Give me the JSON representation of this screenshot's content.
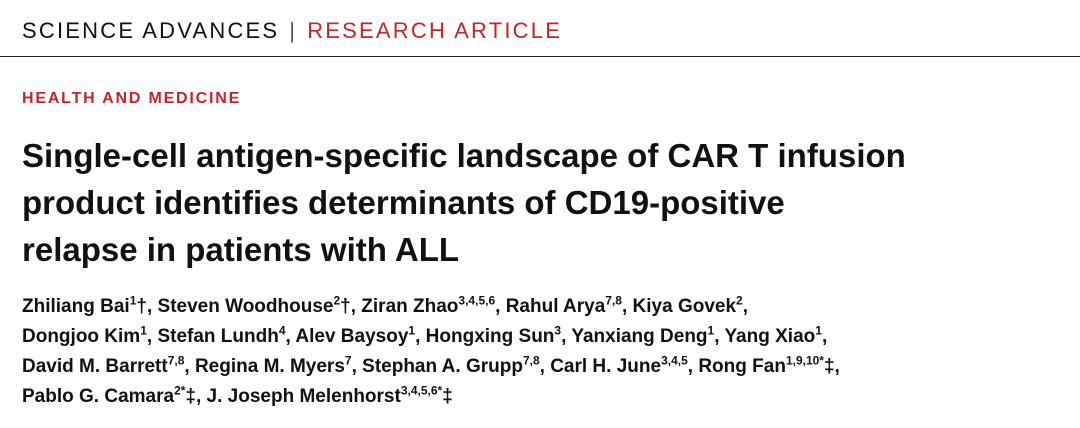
{
  "header": {
    "journal": "SCIENCE ADVANCES",
    "separator": "|",
    "article_type": "RESEARCH ARTICLE"
  },
  "section": "HEALTH AND MEDICINE",
  "title": [
    "Single-cell antigen-specific landscape of CAR T infusion",
    "product identifies determinants of CD19-positive",
    "relapse in patients with ALL"
  ],
  "authors": [
    [
      {
        "name": "Zhiliang Bai",
        "sup": "1",
        "suffix": "†,"
      },
      {
        "name": "Steven Woodhouse",
        "sup": "2",
        "suffix": "†,"
      },
      {
        "name": "Ziran Zhao",
        "sup": "3,4,5,6",
        "suffix": ","
      },
      {
        "name": "Rahul Arya",
        "sup": "7,8",
        "suffix": ","
      },
      {
        "name": "Kiya Govek",
        "sup": "2",
        "suffix": ","
      }
    ],
    [
      {
        "name": "Dongjoo Kim",
        "sup": "1",
        "suffix": ","
      },
      {
        "name": "Stefan Lundh",
        "sup": "4",
        "suffix": ","
      },
      {
        "name": "Alev Baysoy",
        "sup": "1",
        "suffix": ","
      },
      {
        "name": "Hongxing Sun",
        "sup": "3",
        "suffix": ","
      },
      {
        "name": "Yanxiang Deng",
        "sup": "1",
        "suffix": ","
      },
      {
        "name": "Yang Xiao",
        "sup": "1",
        "suffix": ","
      }
    ],
    [
      {
        "name": "David M. Barrett",
        "sup": "7,8",
        "suffix": ","
      },
      {
        "name": "Regina M. Myers",
        "sup": "7",
        "suffix": ","
      },
      {
        "name": "Stephan A. Grupp",
        "sup": "7,8",
        "suffix": ","
      },
      {
        "name": "Carl H. June",
        "sup": "3,4,5",
        "suffix": ","
      },
      {
        "name": "Rong Fan",
        "sup": "1,9,10*",
        "suffix": "‡,"
      }
    ],
    [
      {
        "name": "Pablo G. Camara",
        "sup": "2*",
        "suffix": "‡,"
      },
      {
        "name": "J. Joseph Melenhorst",
        "sup": "3,4,5,6*",
        "suffix": "‡"
      }
    ]
  ]
}
